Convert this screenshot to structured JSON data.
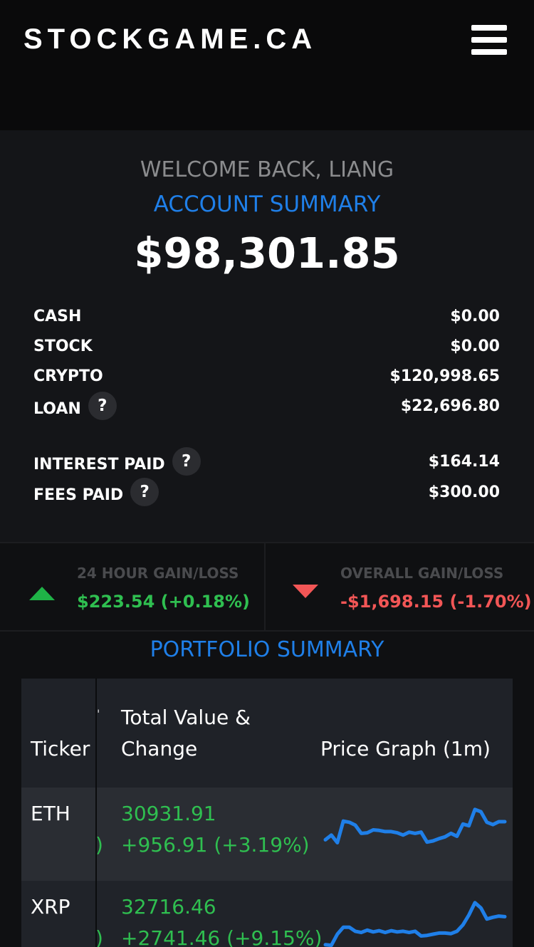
{
  "header": {
    "brand": "STOCKGAME.CA"
  },
  "account": {
    "welcome": "WELCOME BACK, LIANG",
    "title": "ACCOUNT SUMMARY",
    "total": "$98,301.85",
    "rows": [
      {
        "label": "CASH",
        "value": "$0.00"
      },
      {
        "label": "STOCK",
        "value": "$0.00"
      },
      {
        "label": "CRYPTO",
        "value": "$120,998.65"
      },
      {
        "label": "LOAN",
        "value": "$22,696.80",
        "help": "?"
      },
      {
        "label": "INTEREST PAID",
        "value": "$164.14",
        "help": "?"
      },
      {
        "label": "FEES PAID",
        "value": "$300.00",
        "help": "?"
      }
    ]
  },
  "gains": {
    "day": {
      "title": "24 HOUR GAIN/LOSS",
      "value": "$223.54 (+0.18%)",
      "color": "#2fbf50"
    },
    "overall": {
      "title": "OVERALL GAIN/LOSS",
      "value": "-$1,698.15 (-1.70%)",
      "color": "#f25656"
    }
  },
  "portfolio": {
    "title": "PORTFOLIO SUMMARY",
    "headers": {
      "ticker": "Ticker",
      "total_line1": "Total Value &",
      "total_line2": "Change",
      "graph": "Price Graph (1m)",
      "cut_mark": "'"
    },
    "rows": [
      {
        "ticker": "ETH",
        "value": "30931.91",
        "change": "+956.91 (+3.19%)",
        "cut": ")",
        "spark": [
          30,
          38,
          25,
          62,
          60,
          55,
          41,
          42,
          47,
          46,
          44,
          44,
          42,
          38,
          43,
          41,
          43,
          26,
          28,
          32,
          35,
          41,
          36,
          57,
          54,
          82,
          78,
          60,
          56,
          61,
          61
        ]
      },
      {
        "ticker": "XRP",
        "value": "32716.46",
        "change": "+2741.46 (+9.15%)",
        "cut": ")",
        "spark": [
          10,
          9,
          28,
          40,
          40,
          33,
          31,
          35,
          32,
          34,
          31,
          34,
          32,
          33,
          31,
          33,
          25,
          26,
          28,
          30,
          30,
          29,
          33,
          44,
          61,
          82,
          73,
          54,
          57,
          59,
          58
        ]
      }
    ],
    "spark_color": "#1f7fe8"
  }
}
